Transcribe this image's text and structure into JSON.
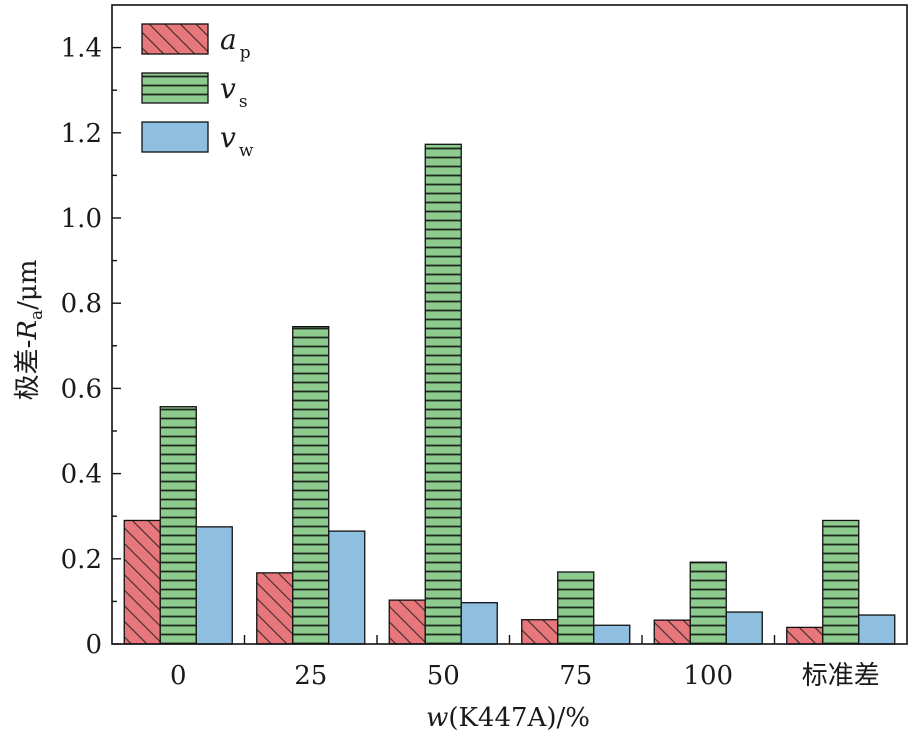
{
  "chart_data": {
    "type": "bar",
    "categories": [
      "0",
      "25",
      "50",
      "75",
      "100",
      "标准差"
    ],
    "series": [
      {
        "name": "a",
        "sub": "p",
        "color": "#e8777b",
        "pattern": "diagonal",
        "values": [
          0.29,
          0.167,
          0.103,
          0.057,
          0.056,
          0.039
        ]
      },
      {
        "name": "v",
        "sub": "s",
        "color": "#8ecb8e",
        "pattern": "horizontal",
        "values": [
          0.557,
          0.745,
          1.173,
          0.169,
          0.192,
          0.29
        ]
      },
      {
        "name": "v",
        "sub": "w",
        "color": "#8ebfe0",
        "pattern": "solid",
        "values": [
          0.275,
          0.265,
          0.097,
          0.044,
          0.075,
          0.068
        ]
      }
    ],
    "xlabel": {
      "prefix": "w",
      "rest": "(K447A)/%"
    },
    "ylabel": {
      "prefix": "极差-",
      "symbol": "R",
      "sub": "a",
      "unit": "/μm"
    },
    "ylim": [
      0,
      1.5
    ],
    "yticks": [
      "0",
      "0.2",
      "0.4",
      "0.6",
      "0.8",
      "1.0",
      "1.2",
      "1.4"
    ],
    "legend_position": "top-left",
    "grid": false
  }
}
